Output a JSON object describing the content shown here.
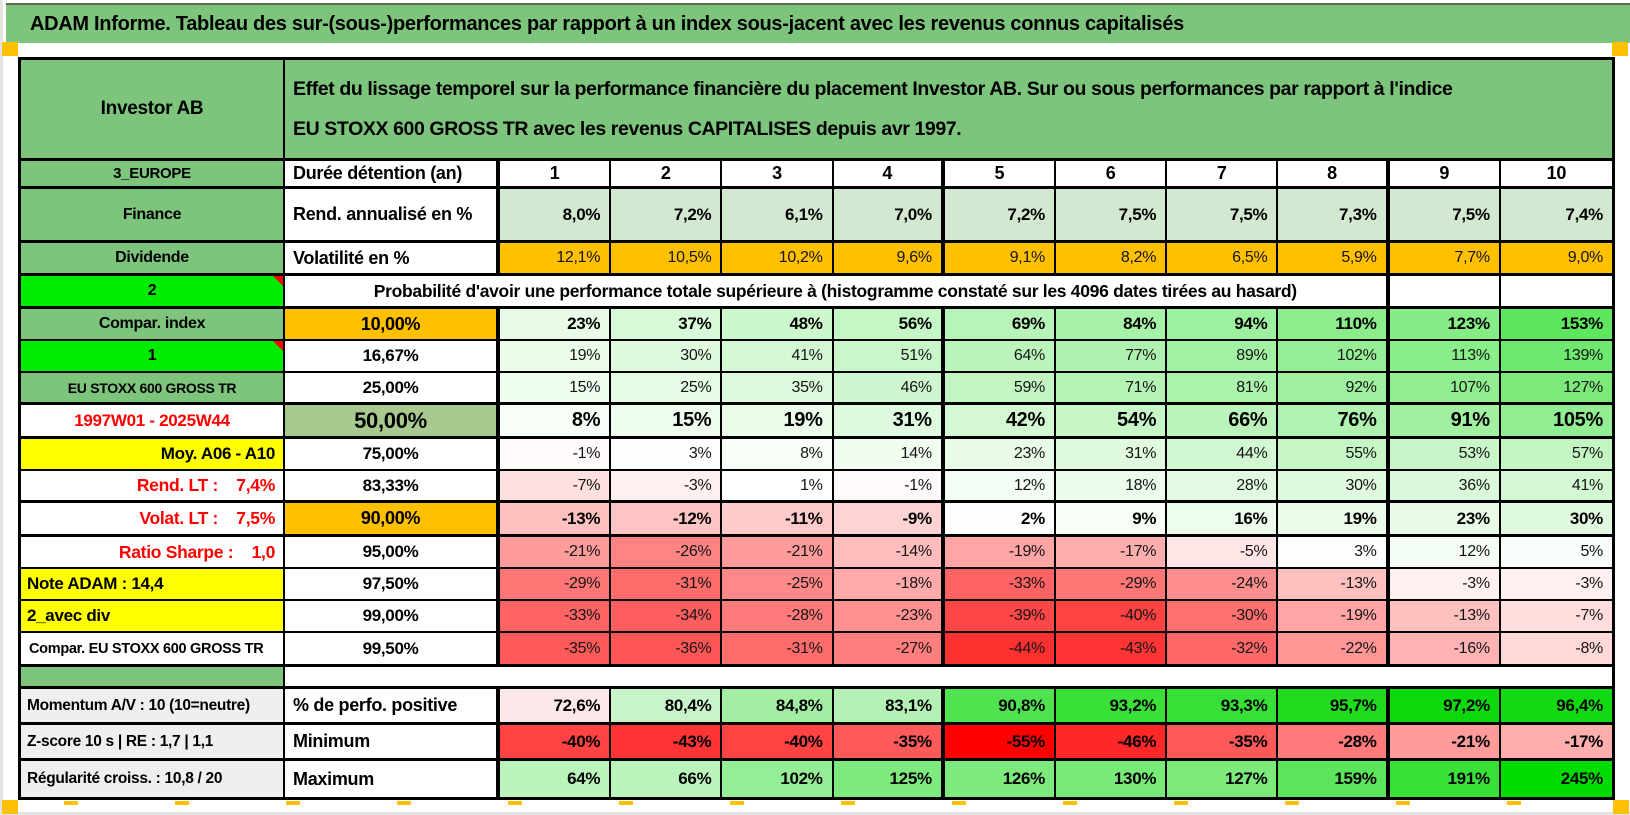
{
  "title": "ADAM Informe. Tableau des sur-(sous-)performances par rapport à un index sous-jacent avec les revenus connus capitalisés",
  "header": {
    "investor": "Investor AB",
    "desc_line1": "Effet du lissage temporel sur la performance financière du placement Investor AB. Sur ou sous performances par rapport à l'indice",
    "desc_line2": "EU STOXX 600 GROSS TR avec les revenus CAPITALISES depuis avr 1997."
  },
  "corner_label": "3_EUROPE",
  "duration_label": "Durée détention (an)",
  "columns": [
    "1",
    "2",
    "3",
    "4",
    "5",
    "6",
    "7",
    "8",
    "9",
    "10"
  ],
  "metric_rows": [
    {
      "label": "Finance",
      "metric": "Rend. annualisé en %",
      "bg": "#D3E8D0",
      "bold": true,
      "values": [
        "8,0%",
        "7,2%",
        "6,1%",
        "7,0%",
        "7,2%",
        "7,5%",
        "7,5%",
        "7,3%",
        "7,5%",
        "7,4%"
      ]
    },
    {
      "label": "Dividende",
      "metric": "Volatilité en %",
      "bg": "#FFC000",
      "bold": false,
      "values": [
        "12,1%",
        "10,5%",
        "10,2%",
        "9,6%",
        "9,1%",
        "8,2%",
        "6,5%",
        "5,9%",
        "7,7%",
        "9,0%"
      ]
    }
  ],
  "banner": {
    "label": "2",
    "text": "Probabilité d'avoir une performance totale supérieure à (histogramme constaté sur les 4096 dates tirées au hasard)"
  },
  "prob_rows": [
    {
      "label": "Compar. index",
      "labelClass": "lab green",
      "thr": "10,00%",
      "thrClass": "thr thr-orange",
      "bold": true,
      "big": false,
      "hb3": false,
      "tri": false,
      "values": [
        "23%",
        "37%",
        "48%",
        "56%",
        "69%",
        "84%",
        "94%",
        "110%",
        "123%",
        "153%"
      ],
      "bgs": [
        "#E7FBE7",
        "#D8F9D8",
        "#CDF7CD",
        "#C5F6C5",
        "#B7F4B7",
        "#A8F1A8",
        "#9DF09D",
        "#8DED8D",
        "#86EC86",
        "#5EE65E"
      ]
    },
    {
      "label": "1",
      "labelClass": "lab lab-bright",
      "thr": "16,67%",
      "thrClass": "thr",
      "bold": false,
      "big": false,
      "hb3": false,
      "tri": true,
      "values": [
        "19%",
        "30%",
        "41%",
        "51%",
        "64%",
        "77%",
        "89%",
        "102%",
        "113%",
        "139%"
      ],
      "bgs": [
        "#EBFCEB",
        "#E0FAE0",
        "#D4F8D4",
        "#CAF7CA",
        "#BCF5BC",
        "#AFF2AF",
        "#A2F0A2",
        "#95EE95",
        "#89ED89",
        "#6EE86E"
      ]
    },
    {
      "label": "EU STOXX 600 GROSS TR",
      "labelClass": "lab green lab-sm",
      "thr": "25,00%",
      "thrClass": "thr",
      "bold": false,
      "big": false,
      "hb3": true,
      "tri": false,
      "values": [
        "15%",
        "25%",
        "35%",
        "46%",
        "59%",
        "71%",
        "81%",
        "92%",
        "107%",
        "127%"
      ],
      "bgs": [
        "#EFFDEF",
        "#E5FBE5",
        "#DBF9DB",
        "#CFF7CF",
        "#C2F5C2",
        "#B5F3B5",
        "#ABF2AB",
        "#9FF09F",
        "#90EE90",
        "#7BEA7B"
      ]
    },
    {
      "label": "1997W01 - 2025W44",
      "labelClass": "lab lab-red-center",
      "thr": "50,00%",
      "thrClass": "thr thr-olive",
      "bold": true,
      "big": true,
      "hb3": true,
      "tri": false,
      "values": [
        "8%",
        "15%",
        "19%",
        "31%",
        "42%",
        "54%",
        "66%",
        "76%",
        "91%",
        "105%"
      ],
      "bgs": [
        "#F7FEF7",
        "#EFFDEF",
        "#EBFCEB",
        "#DFFADF",
        "#D3F8D3",
        "#C7F6C7",
        "#BAF4BA",
        "#B0F3B0",
        "#A0F0A0",
        "#92EE92"
      ]
    },
    {
      "label": "Moy. A06 - A10",
      "labelClass": "lab lab-yellow-right",
      "thr": "75,00%",
      "thrClass": "thr",
      "bold": false,
      "big": false,
      "hb3": false,
      "tri": false,
      "values": [
        "-1%",
        "3%",
        "8%",
        "14%",
        "23%",
        "31%",
        "44%",
        "55%",
        "53%",
        "57%"
      ],
      "bgs": [
        "#FFFAFA",
        "#FCFFFC",
        "#F7FEF7",
        "#F0FDF0",
        "#E7FBE7",
        "#DFFADF",
        "#D1F8D1",
        "#C6F6C6",
        "#C8F6C8",
        "#C4F6C4"
      ]
    },
    {
      "label": "Rend. LT :    7,4%",
      "labelClass": "lab lab-red-right",
      "thr": "83,33%",
      "thrClass": "thr",
      "bold": false,
      "big": false,
      "hb3": true,
      "tri": false,
      "values": [
        "-7%",
        "-3%",
        "1%",
        "-1%",
        "12%",
        "18%",
        "28%",
        "30%",
        "36%",
        "41%"
      ],
      "bgs": [
        "#FFDFDF",
        "#FFF1F1",
        "#FEFFFE",
        "#FFFAFA",
        "#F3FDF3",
        "#ECFCEC",
        "#E2FAE2",
        "#E0FAE0",
        "#DAF9DA",
        "#D4F8D4"
      ]
    },
    {
      "label": "Volat. LT :    7,5%",
      "labelClass": "lab lab-red-right",
      "thr": "90,00%",
      "thrClass": "thr thr-orange",
      "bold": true,
      "big": false,
      "hb3": true,
      "tri": false,
      "values": [
        "-13%",
        "-12%",
        "-11%",
        "-9%",
        "2%",
        "9%",
        "16%",
        "19%",
        "23%",
        "30%"
      ],
      "bgs": [
        "#FFC0C0",
        "#FFC5C5",
        "#FFCACA",
        "#FFD3D3",
        "#FDFFFD",
        "#F6FEF6",
        "#EEFCEE",
        "#EBFCEB",
        "#E7FBE7",
        "#E0FAE0"
      ]
    },
    {
      "label": "Ratio Sharpe :    1,0",
      "labelClass": "lab lab-red-right",
      "thr": "95,00%",
      "thrClass": "thr",
      "bold": false,
      "big": false,
      "hb3": false,
      "tri": false,
      "values": [
        "-21%",
        "-26%",
        "-21%",
        "-14%",
        "-19%",
        "-17%",
        "-5%",
        "3%",
        "12%",
        "5%"
      ],
      "bgs": [
        "#FF9B9B",
        "#FF8383",
        "#FF9B9B",
        "#FFBCBC",
        "#FFA5A5",
        "#FFAEAE",
        "#FFE6E6",
        "#FCFFFC",
        "#F3FDF3",
        "#FAFEFA"
      ]
    },
    {
      "label": "Note ADAM : 14,4",
      "labelClass": "lab lab-yellow-left",
      "thr": "97,50%",
      "thrClass": "thr",
      "bold": false,
      "big": false,
      "hb3": false,
      "tri": false,
      "values": [
        "-29%",
        "-31%",
        "-25%",
        "-18%",
        "-33%",
        "-29%",
        "-24%",
        "-13%",
        "-3%",
        "-3%"
      ],
      "bgs": [
        "#FF7676",
        "#FF6C6C",
        "#FF8888",
        "#FFAAAA",
        "#FF6363",
        "#FF7676",
        "#FF8E8E",
        "#FFC0C0",
        "#FFF1F1",
        "#FFF1F1"
      ]
    },
    {
      "label": "2_avec div",
      "labelClass": "lab lab-yellow-left",
      "thr": "99,00%",
      "thrClass": "thr",
      "bold": false,
      "big": false,
      "hb3": false,
      "tri": false,
      "values": [
        "-33%",
        "-34%",
        "-28%",
        "-23%",
        "-39%",
        "-40%",
        "-30%",
        "-19%",
        "-13%",
        "-7%"
      ],
      "bgs": [
        "#FF6363",
        "#FF5E5E",
        "#FF7A7A",
        "#FF9191",
        "#FF4747",
        "#FF4343",
        "#FF7171",
        "#FFA5A5",
        "#FFC0C0",
        "#FFDDDD"
      ]
    },
    {
      "label": "Compar. EU STOXX 600 GROSS TR",
      "labelClass": "lab lab-compar",
      "thr": "99,50%",
      "thrClass": "thr",
      "bold": false,
      "big": false,
      "hb3": true,
      "tri": false,
      "values": [
        "-35%",
        "-36%",
        "-31%",
        "-27%",
        "-44%",
        "-43%",
        "-32%",
        "-22%",
        "-16%",
        "-8%"
      ],
      "bgs": [
        "#FF5A5A",
        "#FF5555",
        "#FF6C6C",
        "#FF7F7F",
        "#FF3030",
        "#FF3535",
        "#FF6868",
        "#FF9696",
        "#FFB2B2",
        "#FFD8D8"
      ]
    }
  ],
  "bottom_rows": [
    {
      "label": "Momentum A/V : 10 (10=neutre)",
      "metric": "% de perfo. positive",
      "hb3": true,
      "values": [
        "72,6%",
        "80,4%",
        "84,8%",
        "83,1%",
        "90,8%",
        "93,2%",
        "93,3%",
        "95,7%",
        "97,2%",
        "96,4%"
      ],
      "bgs": [
        "#FBE9E9",
        "#C9F3C9",
        "#A4EDA4",
        "#B5F0B5",
        "#4FE44F",
        "#38E038",
        "#36E036",
        "#1FDC1F",
        "#0BD90B",
        "#12DA12"
      ]
    },
    {
      "label": "Z-score 10 s | RE : 1,7 | 1,1",
      "metric": "Minimum",
      "hb3": true,
      "values": [
        "-40%",
        "-43%",
        "-40%",
        "-35%",
        "-55%",
        "-46%",
        "-35%",
        "-28%",
        "-21%",
        "-17%"
      ],
      "bgs": [
        "#FF4343",
        "#FF3535",
        "#FF4343",
        "#FF5A5A",
        "#FF0000",
        "#FF2727",
        "#FF5A5A",
        "#FF7A7A",
        "#FF9B9B",
        "#FFAEAE"
      ]
    },
    {
      "label": "Régularité croiss. : 10,8 / 20",
      "metric": "Maximum",
      "hb3": false,
      "values": [
        "64%",
        "66%",
        "102%",
        "125%",
        "126%",
        "130%",
        "127%",
        "159%",
        "191%",
        "245%"
      ],
      "bgs": [
        "#BCF5BC",
        "#BAF4BA",
        "#95EE95",
        "#7DEA7D",
        "#7CEA7C",
        "#78EA78",
        "#7BEA7B",
        "#5AE55A",
        "#38E038",
        "#00DC00"
      ]
    }
  ],
  "colors": {
    "soft_green": "#7DC57D",
    "bright_green": "#00EC00",
    "orange": "#FFC000",
    "yellow": "#FFFF00",
    "olive": "#A9CA8F",
    "sage": "#D3E8D0",
    "gray_label": "#EFEFEF",
    "negative_red": "#FF0000",
    "positive_green": "#00DC00",
    "red_text": "#FF0000"
  }
}
